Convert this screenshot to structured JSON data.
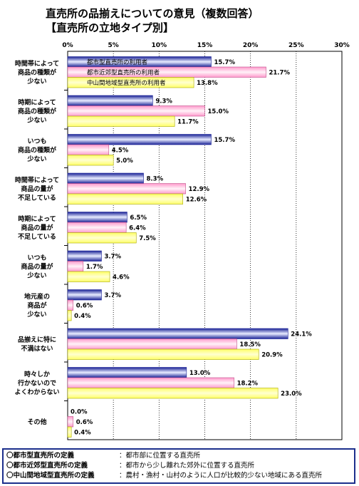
{
  "title_line1": "直売所の品揃えについての意見（複数回答）",
  "title_line2": "【直売所の立地タイプ別】",
  "chart_data": {
    "type": "bar",
    "orientation": "horizontal",
    "xlim": [
      0,
      30
    ],
    "x_ticks": [
      "0%",
      "5%",
      "10%",
      "15%",
      "20%",
      "25%",
      "30%"
    ],
    "categories": [
      [
        "時間帯によって",
        "商品の種類が",
        "少ない"
      ],
      [
        "時期によって",
        "商品の種類が",
        "少ない"
      ],
      [
        "いつも",
        "商品の種類が",
        "少ない"
      ],
      [
        "時間帯によって",
        "商品の量が",
        "不足している"
      ],
      [
        "時期によって",
        "商品の量が",
        "不足している"
      ],
      [
        "いつも",
        "商品の量が",
        "少ない"
      ],
      [
        "地元産の",
        "商品が",
        "少ない"
      ],
      [
        "品揃えに特に",
        "不満はない"
      ],
      [
        "時々しか",
        "行かないので",
        "よくわからない"
      ],
      [
        "その他"
      ]
    ],
    "series": [
      {
        "name": "都市型直売所の利用者",
        "values": [
          15.7,
          9.3,
          15.7,
          8.3,
          6.5,
          3.7,
          3.7,
          24.1,
          13.0,
          0.0
        ],
        "labels": [
          "15.7%",
          "9.3%",
          "15.7%",
          "8.3%",
          "6.5%",
          "3.7%",
          "3.7%",
          "24.1%",
          "13.0%",
          "0.0%"
        ]
      },
      {
        "name": "都市近郊型直売所の利用者",
        "values": [
          21.7,
          15.0,
          4.5,
          12.9,
          6.4,
          1.7,
          0.6,
          18.5,
          18.2,
          0.6
        ],
        "labels": [
          "21.7%",
          "15.0%",
          "4.5%",
          "12.9%",
          "6.4%",
          "1.7%",
          "0.6%",
          "18.5%",
          "18.2%",
          "0.6%"
        ]
      },
      {
        "name": "中山間地域型直売所の利用者",
        "values": [
          13.8,
          11.7,
          5.0,
          12.6,
          7.5,
          4.6,
          0.4,
          20.9,
          23.0,
          0.4
        ],
        "labels": [
          "13.8%",
          "11.7%",
          "5.0%",
          "12.6%",
          "7.5%",
          "4.6%",
          "0.4%",
          "20.9%",
          "23.0%",
          "0.4%"
        ]
      }
    ],
    "series_colors": [
      "#2a36b8",
      "#ffb6d9",
      "#ffff80"
    ],
    "legend_placement": "inside-top"
  },
  "definitions": [
    {
      "term": "〇都市型直売所の定義",
      "desc": "：都市部に位置する直売所"
    },
    {
      "term": "〇都市近郊型直売所の定義",
      "desc": "：都市から少し離れた郊外に位置する直売所"
    },
    {
      "term": "〇中山間地域型直売所の定義",
      "desc": "：農村・漁村・山村のように人口が比較的少ない地域にある直売所"
    }
  ]
}
